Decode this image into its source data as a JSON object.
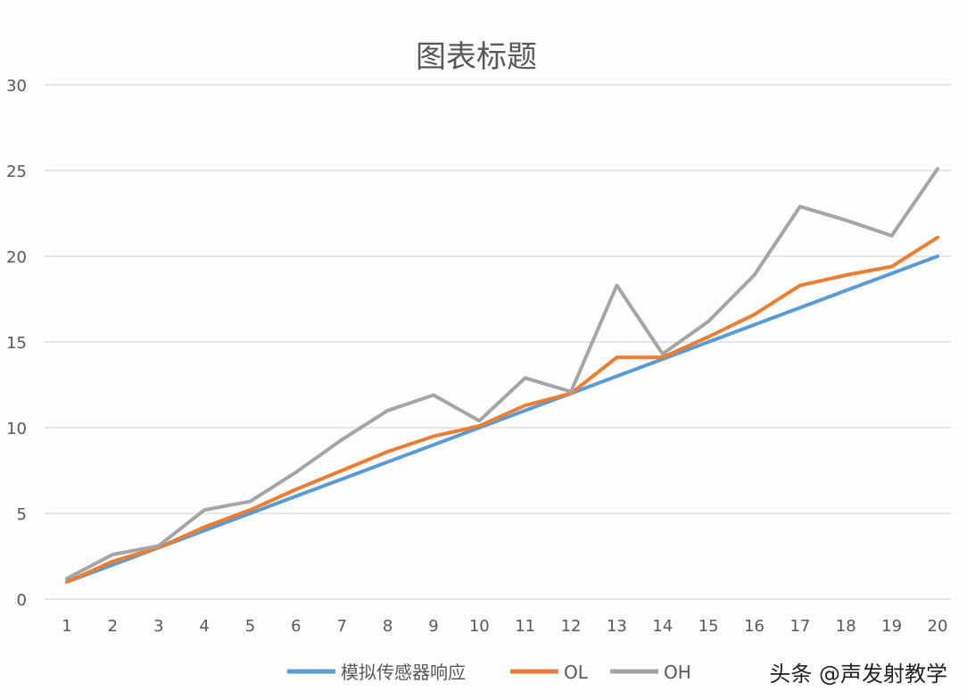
{
  "chart_data": {
    "type": "line",
    "title": "图表标题",
    "x": [
      1,
      2,
      3,
      4,
      5,
      6,
      7,
      8,
      9,
      10,
      11,
      12,
      13,
      14,
      15,
      16,
      17,
      18,
      19,
      20
    ],
    "ylim": [
      0,
      30
    ],
    "yticks": [
      0,
      5,
      10,
      15,
      20,
      25,
      30
    ],
    "grid": true,
    "legend_position": "bottom",
    "series": [
      {
        "name": "模拟传感器响应",
        "color": "#5b9bd5",
        "values": [
          1,
          2,
          3,
          4,
          5,
          6,
          7,
          8,
          9,
          10,
          11,
          12,
          13,
          14,
          15,
          16,
          17,
          18,
          19,
          20
        ]
      },
      {
        "name": "OL",
        "color": "#ed7d31",
        "values": [
          1.0,
          2.2,
          3.0,
          4.2,
          5.2,
          6.4,
          7.5,
          8.6,
          9.5,
          10.1,
          11.3,
          12.0,
          14.1,
          14.1,
          15.3,
          16.6,
          18.3,
          18.9,
          19.4,
          21.1
        ]
      },
      {
        "name": "OH",
        "color": "#a5a5a5",
        "values": [
          1.2,
          2.6,
          3.1,
          5.2,
          5.7,
          7.4,
          9.3,
          11.0,
          11.9,
          10.4,
          12.9,
          12.1,
          18.3,
          14.3,
          16.2,
          18.9,
          22.9,
          22.1,
          21.2,
          25.1
        ]
      }
    ]
  },
  "watermark": "头条 @声发射教学"
}
